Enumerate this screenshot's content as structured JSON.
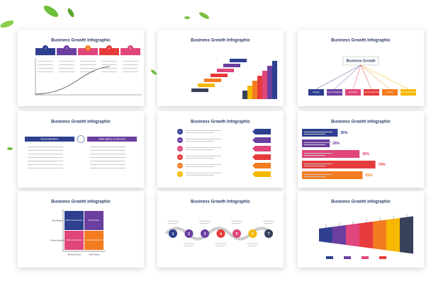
{
  "slides": [
    {
      "title": "Business Growth Infographic",
      "steps": [
        "1",
        "2",
        "3",
        "4",
        "5"
      ]
    },
    {
      "title": "Business Growth Infographic"
    },
    {
      "title": "Business Growth Infographic",
      "center": "Business Growth",
      "items": [
        "Strategy",
        "Sales & Marketing",
        "Operations",
        "Human Resources",
        "Finance",
        "Product Development"
      ]
    },
    {
      "title": "Business Growth Infographic",
      "left": "Diversification",
      "right": "Alternative Channels"
    },
    {
      "title": "Business Growth Infographic",
      "steps": [
        "01",
        "02",
        "03",
        "04",
        "05",
        "06"
      ]
    },
    {
      "title": "Business Growth Infographic",
      "percents": [
        "36%",
        "28%",
        "58%",
        "74%",
        "61%"
      ]
    },
    {
      "title": "Business Growth Infographic",
      "quadrants": [
        "Market Development",
        "Diversification",
        "Market Penetration",
        "Product Development"
      ],
      "x_labels": [
        "Existing Product",
        "New Product"
      ],
      "y_labels": [
        "Existing Markets",
        "New Markets"
      ]
    },
    {
      "title": "Business Growth Infographic",
      "steps": [
        "1",
        "2",
        "3",
        "4",
        "5",
        "6",
        "7"
      ]
    },
    {
      "title": "Business Growth Infographic"
    }
  ]
}
